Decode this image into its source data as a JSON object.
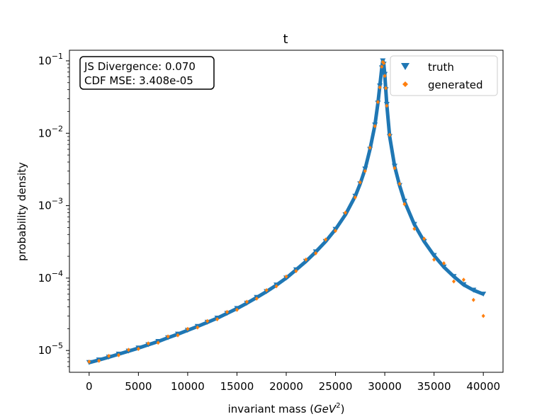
{
  "chart_data": {
    "type": "scatter",
    "title": "t",
    "xlabel": "invariant mass (GeV²)",
    "xlabel_text": "invariant mass (",
    "xlabel_unit": "GeV",
    "xlabel_sup": "2",
    "xlabel_close": ")",
    "ylabel": "probability density",
    "xlim": [
      -2000,
      42000
    ],
    "ylim": [
      5e-06,
      0.14
    ],
    "yscale": "log",
    "x_ticks": [
      0,
      5000,
      10000,
      15000,
      20000,
      25000,
      30000,
      35000,
      40000
    ],
    "x_tick_labels": [
      "0",
      "5000",
      "10000",
      "15000",
      "20000",
      "25000",
      "30000",
      "35000",
      "40000"
    ],
    "y_ticks": [
      1e-05,
      0.0001,
      0.001,
      0.01,
      0.1
    ],
    "y_tick_labels": [
      {
        "base": "10",
        "exp": "−5"
      },
      {
        "base": "10",
        "exp": "−4"
      },
      {
        "base": "10",
        "exp": "−3"
      },
      {
        "base": "10",
        "exp": "−2"
      },
      {
        "base": "10",
        "exp": "−1"
      }
    ],
    "annotation": [
      "JS Divergence: 0.070",
      "CDF MSE: 3.408e-05"
    ],
    "legend": {
      "placement": "top-right",
      "entries": [
        {
          "label": "truth",
          "marker": "triangle-down",
          "color": "#1f77b4"
        },
        {
          "label": "generated",
          "marker": "diamond",
          "color": "#ff7f0e"
        }
      ]
    },
    "series": [
      {
        "name": "truth",
        "color": "#1f77b4",
        "marker": "triangle-down",
        "x": [
          0,
          1000,
          2000,
          3000,
          4000,
          5000,
          6000,
          7000,
          8000,
          9000,
          10000,
          11000,
          12000,
          13000,
          14000,
          15000,
          16000,
          17000,
          18000,
          19000,
          20000,
          21000,
          22000,
          23000,
          24000,
          25000,
          26000,
          27000,
          27500,
          28000,
          28500,
          29000,
          29300,
          29500,
          29700,
          29800,
          29900,
          30000,
          30100,
          30200,
          30500,
          31000,
          31500,
          32000,
          33000,
          34000,
          35000,
          36000,
          37000,
          38000,
          39000,
          40000
        ],
        "y": [
          6.8e-06,
          7.4e-06,
          8.1e-06,
          8.9e-06,
          9.8e-06,
          1.08e-05,
          1.2e-05,
          1.33e-05,
          1.5e-05,
          1.68e-05,
          1.9e-05,
          2.15e-05,
          2.45e-05,
          2.8e-05,
          3.25e-05,
          3.8e-05,
          4.5e-05,
          5.4e-05,
          6.5e-05,
          8e-05,
          0.0001,
          0.00013,
          0.00017,
          0.00023,
          0.00032,
          0.00047,
          0.00075,
          0.00135,
          0.002,
          0.0032,
          0.006,
          0.013,
          0.026,
          0.045,
          0.08,
          0.1,
          0.09,
          0.065,
          0.04,
          0.025,
          0.009,
          0.0035,
          0.0019,
          0.00115,
          0.00055,
          0.00032,
          0.000205,
          0.000142,
          0.000105,
          8.1e-05,
          6.8e-05,
          6e-05
        ]
      },
      {
        "name": "generated",
        "color": "#ff7f0e",
        "marker": "diamond",
        "x": [
          0,
          1000,
          2000,
          3000,
          4000,
          5000,
          6000,
          7000,
          8000,
          9000,
          10000,
          11000,
          12000,
          13000,
          14000,
          15000,
          16000,
          17000,
          18000,
          19000,
          20000,
          21000,
          22000,
          23000,
          24000,
          25000,
          26000,
          27000,
          27500,
          28000,
          28500,
          29000,
          29300,
          29500,
          29700,
          29800,
          29900,
          30000,
          30100,
          30200,
          30500,
          31000,
          31500,
          32000,
          33000,
          34000,
          35000,
          36000,
          37000,
          38000,
          39000,
          40000
        ],
        "y": [
          7e-06,
          7.2e-06,
          8.4e-06,
          8.6e-06,
          1.02e-05,
          1.05e-05,
          1.25e-05,
          1.28e-05,
          1.56e-05,
          1.62e-05,
          1.98e-05,
          2.08e-05,
          2.55e-05,
          2.7e-05,
          3.4e-05,
          3.65e-05,
          4.7e-05,
          5.2e-05,
          6.8e-05,
          7.7e-05,
          0.000105,
          0.000125,
          0.00018,
          0.00022,
          0.00034,
          0.00045,
          0.0008,
          0.0013,
          0.0021,
          0.003,
          0.0063,
          0.0125,
          0.027,
          0.043,
          0.083,
          0.096,
          0.093,
          0.062,
          0.042,
          0.024,
          0.0095,
          0.0033,
          0.002,
          0.00105,
          0.00048,
          0.00035,
          0.00018,
          0.00016,
          9e-05,
          9.5e-05,
          5e-05,
          3e-05
        ]
      }
    ]
  }
}
